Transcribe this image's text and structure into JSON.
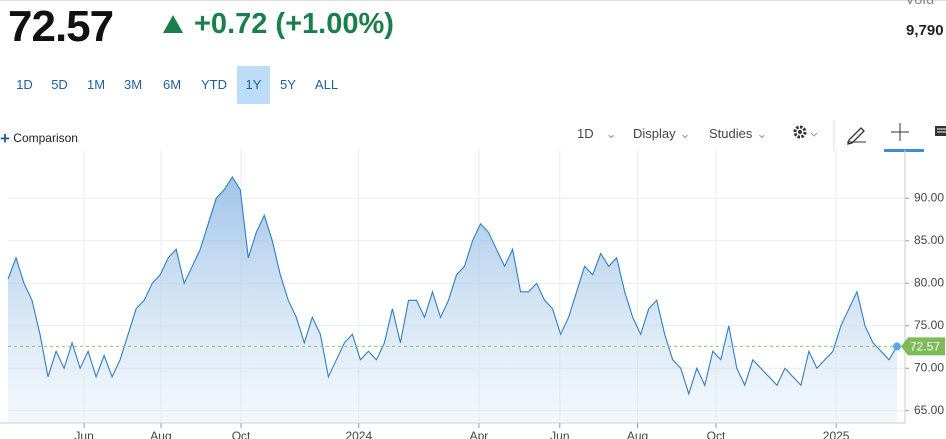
{
  "header": {
    "price": "72.57",
    "change": "+0.72 (+1.00%)",
    "volume_label": "Volu",
    "volume": "9,790"
  },
  "ranges": [
    "1D",
    "5D",
    "1M",
    "3M",
    "6M",
    "YTD",
    "1Y",
    "5Y",
    "ALL"
  ],
  "selected_range": "1Y",
  "toolbar": {
    "comparison": "Comparison",
    "interval": "1D",
    "display": "Display",
    "studies": "Studies"
  },
  "chart_data": {
    "type": "area",
    "values": [
      80.5,
      83,
      80,
      78,
      74,
      69,
      72,
      70,
      73,
      70,
      72,
      69,
      71.5,
      69,
      71,
      74,
      77,
      78,
      80,
      81,
      83,
      84,
      80,
      82,
      84,
      87,
      90,
      91,
      92.5,
      91,
      83,
      86,
      88,
      85,
      81,
      78,
      76,
      73,
      76,
      74,
      69,
      71,
      73,
      74,
      71,
      72,
      71,
      73,
      77,
      73,
      78,
      78,
      76,
      79,
      76,
      78,
      81,
      82,
      85,
      87,
      86,
      84,
      82,
      84,
      79,
      79,
      80,
      78,
      77,
      74,
      76,
      79,
      82,
      81,
      83.5,
      82,
      83,
      79,
      76,
      74,
      77,
      78,
      74,
      71,
      70,
      67,
      70,
      68,
      72,
      71,
      75,
      70,
      68,
      71,
      70,
      69,
      68,
      70,
      69,
      68,
      72,
      70,
      71,
      72,
      75,
      77,
      79,
      75,
      73,
      72,
      71,
      72.57
    ],
    "color": "#2f7fc1",
    "xlim": [
      0,
      111
    ],
    "xticks": [
      {
        "value": 9.5,
        "label": "Jun"
      },
      {
        "value": 19.1,
        "label": "Aug"
      },
      {
        "value": 29.1,
        "label": "Oct"
      },
      {
        "value": 43.8,
        "label": "2024"
      },
      {
        "value": 58.8,
        "label": "Apr"
      },
      {
        "value": 68.9,
        "label": "Jun"
      },
      {
        "value": 78.6,
        "label": "Aug"
      },
      {
        "value": 88.4,
        "label": "Oct"
      },
      {
        "value": 103.4,
        "label": "2025"
      }
    ],
    "ylim": [
      64.5,
      94.5
    ],
    "yticks": [
      {
        "value": 65,
        "label": "65.00"
      },
      {
        "value": 70,
        "label": "70.00"
      },
      {
        "value": 75,
        "label": "75.00"
      },
      {
        "value": 80,
        "label": "80.00"
      },
      {
        "value": 85,
        "label": "85.00"
      },
      {
        "value": 90,
        "label": "90.00"
      }
    ],
    "grid": true
  }
}
